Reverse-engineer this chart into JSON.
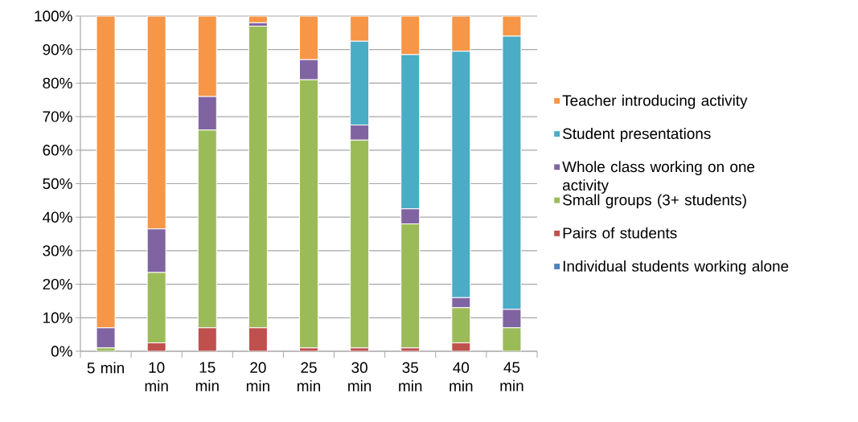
{
  "chart_data": {
    "type": "bar",
    "stacked": true,
    "categories": [
      "5 min",
      "10 min",
      "15 min",
      "20 min",
      "25 min",
      "30 min",
      "35 min",
      "40 min",
      "45 min"
    ],
    "series": [
      {
        "name": "Individual students working alone",
        "color": "#4f81bd",
        "values": [
          0,
          0,
          0,
          0,
          0,
          0,
          0,
          0,
          0
        ]
      },
      {
        "name": "Pairs of students",
        "color": "#c0504d",
        "values": [
          0,
          2.5,
          7,
          7,
          1,
          1,
          1,
          2.5,
          0
        ]
      },
      {
        "name": "Small groups (3+ students)",
        "color": "#9bbb59",
        "values": [
          1,
          21,
          59,
          90,
          80,
          62,
          37,
          10.5,
          7
        ]
      },
      {
        "name": "Whole class working on one activity",
        "color": "#8064a2",
        "values": [
          6,
          13,
          10,
          1,
          6,
          4.5,
          4.5,
          3,
          5.5
        ]
      },
      {
        "name": "Student presentations",
        "color": "#4bacc6",
        "values": [
          0,
          0,
          0,
          0,
          0,
          25,
          46,
          73.5,
          81.5
        ]
      },
      {
        "name": "Teacher introducing activity",
        "color": "#f79646",
        "values": [
          93,
          63.5,
          24,
          2,
          13,
          7.5,
          11.5,
          10.5,
          6
        ]
      }
    ],
    "ylim": [
      0,
      100
    ],
    "yticks": [
      {
        "value": 0,
        "label": "0%"
      },
      {
        "value": 10,
        "label": "10%"
      },
      {
        "value": 20,
        "label": "20%"
      },
      {
        "value": 30,
        "label": "30%"
      },
      {
        "value": 40,
        "label": "40%"
      },
      {
        "value": 50,
        "label": "50%"
      },
      {
        "value": 60,
        "label": "60%"
      },
      {
        "value": 70,
        "label": "70%"
      },
      {
        "value": 80,
        "label": "80%"
      },
      {
        "value": 90,
        "label": "90%"
      },
      {
        "value": 100,
        "label": "100%"
      }
    ],
    "grid": "y",
    "legend": "right"
  }
}
